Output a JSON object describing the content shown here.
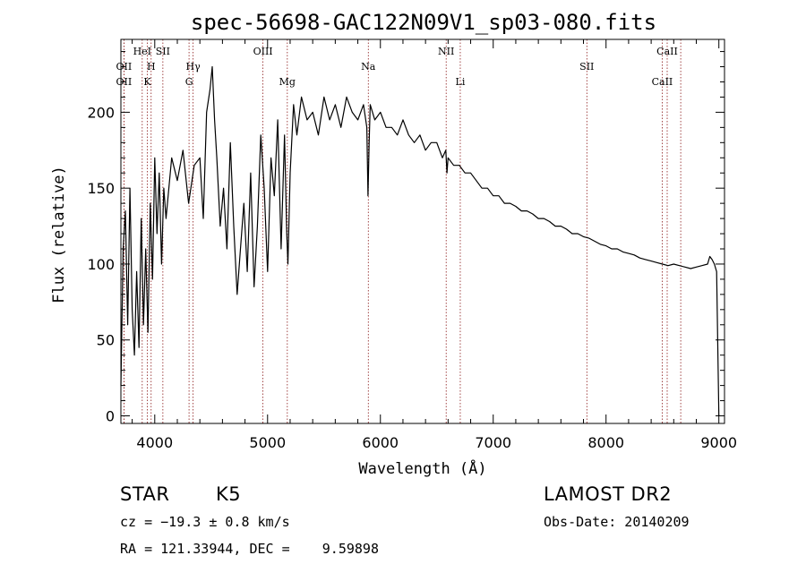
{
  "chart_data": {
    "type": "line",
    "title": "spec-56698-GAC122N09V1_sp03-080.fits",
    "xlabel": "Wavelength (Å)",
    "ylabel": "Flux (relative)",
    "xlim": [
      3700,
      9050
    ],
    "ylim": [
      -5,
      248
    ],
    "xticks": [
      4000,
      5000,
      6000,
      7000,
      8000,
      9000
    ],
    "yticks": [
      0,
      50,
      100,
      150,
      200
    ],
    "grid": false,
    "line_color": "#000000",
    "marker_color": "#8b1a1a",
    "spectral_lines": [
      {
        "label": "OII",
        "wavelength": 3727,
        "row": "upper"
      },
      {
        "label": "OII",
        "wavelength": 3727,
        "row": "lower"
      },
      {
        "label": "HeI",
        "wavelength": 3889,
        "row": "top"
      },
      {
        "label": "SII",
        "wavelength": 4072,
        "row": "top"
      },
      {
        "label": "H",
        "wavelength": 3968,
        "row": "upper"
      },
      {
        "label": "K",
        "wavelength": 3934,
        "row": "lower"
      },
      {
        "label": "Hγ",
        "wavelength": 4340,
        "row": "upper"
      },
      {
        "label": "G",
        "wavelength": 4304,
        "row": "lower"
      },
      {
        "label": "OIII",
        "wavelength": 4959,
        "row": "top"
      },
      {
        "label": "Mg",
        "wavelength": 5175,
        "row": "lower"
      },
      {
        "label": "Na",
        "wavelength": 5893,
        "row": "upper"
      },
      {
        "label": "NII",
        "wavelength": 6583,
        "row": "top"
      },
      {
        "label": "Li",
        "wavelength": 6708,
        "row": "lower"
      },
      {
        "label": "SII",
        "wavelength": 7830,
        "row": "upper"
      },
      {
        "label": "CaII",
        "wavelength": 8542,
        "row": "top"
      },
      {
        "label": "CaII",
        "wavelength": 8498,
        "row": "lower"
      },
      {
        "label": "",
        "wavelength": 8662,
        "row": "none"
      }
    ],
    "series": [
      {
        "x": [
          3700,
          3720,
          3740,
          3760,
          3780,
          3800,
          3820,
          3840,
          3860,
          3880,
          3900,
          3920,
          3940,
          3960,
          3980,
          4000,
          4020,
          4040,
          4060,
          4080,
          4100,
          4150,
          4200,
          4250,
          4300,
          4350,
          4400,
          4430,
          4460,
          4490,
          4510,
          4530,
          4550,
          4580,
          4610,
          4640,
          4670,
          4700,
          4730,
          4760,
          4790,
          4820,
          4850,
          4880,
          4910,
          4940,
          4970,
          5000,
          5030,
          5060,
          5090,
          5120,
          5150,
          5170,
          5180,
          5200,
          5230,
          5260,
          5300,
          5350,
          5400,
          5450,
          5500,
          5550,
          5600,
          5650,
          5700,
          5750,
          5800,
          5850,
          5880,
          5890,
          5900,
          5910,
          5950,
          6000,
          6050,
          6100,
          6150,
          6200,
          6250,
          6300,
          6350,
          6400,
          6450,
          6500,
          6550,
          6580,
          6590,
          6600,
          6650,
          6700,
          6750,
          6800,
          6850,
          6900,
          6950,
          7000,
          7050,
          7100,
          7150,
          7200,
          7250,
          7300,
          7350,
          7400,
          7450,
          7500,
          7550,
          7600,
          7650,
          7700,
          7750,
          7800,
          7850,
          7900,
          7950,
          8000,
          8050,
          8100,
          8150,
          8200,
          8250,
          8300,
          8350,
          8400,
          8450,
          8500,
          8550,
          8600,
          8650,
          8700,
          8750,
          8800,
          8850,
          8900,
          8920,
          8940,
          8960,
          8980,
          9000
        ],
        "y": [
          20,
          110,
          135,
          60,
          150,
          70,
          40,
          95,
          45,
          130,
          60,
          110,
          55,
          140,
          90,
          170,
          120,
          160,
          100,
          150,
          130,
          170,
          155,
          175,
          140,
          165,
          170,
          130,
          200,
          215,
          230,
          195,
          170,
          125,
          150,
          110,
          180,
          125,
          80,
          110,
          140,
          95,
          160,
          85,
          125,
          185,
          150,
          95,
          170,
          145,
          195,
          110,
          185,
          120,
          100,
          160,
          205,
          185,
          210,
          195,
          200,
          185,
          210,
          195,
          205,
          190,
          210,
          200,
          195,
          205,
          190,
          145,
          180,
          205,
          195,
          200,
          190,
          190,
          185,
          195,
          185,
          180,
          185,
          175,
          180,
          180,
          170,
          175,
          160,
          170,
          165,
          165,
          160,
          160,
          155,
          150,
          150,
          145,
          145,
          140,
          140,
          138,
          135,
          135,
          133,
          130,
          130,
          128,
          125,
          125,
          123,
          120,
          120,
          118,
          117,
          115,
          113,
          112,
          110,
          110,
          108,
          107,
          106,
          104,
          103,
          102,
          101,
          100,
          99,
          100,
          99,
          98,
          97,
          98,
          99,
          100,
          105,
          103,
          100,
          95,
          0
        ]
      }
    ],
    "footer": {
      "object_type": "STAR",
      "subclass": "K5",
      "survey": "LAMOST DR2",
      "redshift": "cz = −19.3 ± 0.8 km/s",
      "obs_date": "Obs-Date: 20140209",
      "coords": "RA = 121.33944, DEC =    9.59898"
    }
  }
}
